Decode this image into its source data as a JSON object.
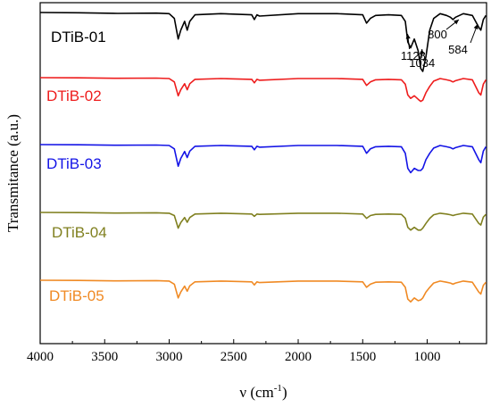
{
  "chart_data": {
    "type": "line",
    "xlabel": "ν (cm",
    "xlabel_sup": "-1",
    "xlabel_close": ")",
    "ylabel": "Transmitance (a.u.)",
    "xlim": [
      4000,
      540
    ],
    "x_reversed": true,
    "x_ticks": [
      4000,
      3500,
      3000,
      2500,
      2000,
      1500,
      1000
    ],
    "y_ticks_shown": false,
    "legend_placement": "inline-left",
    "series": [
      {
        "name": "DTiB-01",
        "color": "#000000",
        "label_color": "#000000",
        "baseline": 1.0,
        "scale": 1.0,
        "points": [
          [
            4000,
            0.0
          ],
          [
            3700,
            0.005
          ],
          [
            3400,
            0.015
          ],
          [
            3100,
            0.01
          ],
          [
            3000,
            0.02
          ],
          [
            2960,
            0.1
          ],
          [
            2930,
            0.45
          ],
          [
            2910,
            0.3
          ],
          [
            2880,
            0.15
          ],
          [
            2860,
            0.3
          ],
          [
            2840,
            0.15
          ],
          [
            2800,
            0.04
          ],
          [
            2600,
            0.02
          ],
          [
            2360,
            0.04
          ],
          [
            2340,
            0.12
          ],
          [
            2320,
            0.04
          ],
          [
            2300,
            0.06
          ],
          [
            2000,
            0.02
          ],
          [
            1700,
            0.02
          ],
          [
            1500,
            0.04
          ],
          [
            1470,
            0.18
          ],
          [
            1440,
            0.1
          ],
          [
            1400,
            0.05
          ],
          [
            1300,
            0.04
          ],
          [
            1200,
            0.05
          ],
          [
            1170,
            0.15
          ],
          [
            1150,
            0.5
          ],
          [
            1128,
            0.6
          ],
          [
            1100,
            0.45
          ],
          [
            1070,
            0.65
          ],
          [
            1050,
            0.95
          ],
          [
            1034,
            1.0
          ],
          [
            1010,
            0.75
          ],
          [
            980,
            0.3
          ],
          [
            950,
            0.1
          ],
          [
            900,
            0.02
          ],
          [
            850,
            0.05
          ],
          [
            820,
            0.08
          ],
          [
            800,
            0.12
          ],
          [
            780,
            0.08
          ],
          [
            720,
            0.02
          ],
          [
            650,
            0.05
          ],
          [
            600,
            0.25
          ],
          [
            584,
            0.3
          ],
          [
            565,
            0.12
          ],
          [
            545,
            0.05
          ]
        ]
      },
      {
        "name": "DTiB-02",
        "color": "#ee1c1c",
        "label_color": "#ee1c1c",
        "baseline": 2.0,
        "scale": 1.0,
        "points": [
          [
            4000,
            0.0
          ],
          [
            3700,
            0.005
          ],
          [
            3400,
            0.015
          ],
          [
            3100,
            0.01
          ],
          [
            3000,
            0.02
          ],
          [
            2960,
            0.1
          ],
          [
            2930,
            0.42
          ],
          [
            2910,
            0.28
          ],
          [
            2880,
            0.14
          ],
          [
            2860,
            0.28
          ],
          [
            2840,
            0.14
          ],
          [
            2800,
            0.04
          ],
          [
            2600,
            0.02
          ],
          [
            2360,
            0.04
          ],
          [
            2340,
            0.12
          ],
          [
            2320,
            0.04
          ],
          [
            2300,
            0.06
          ],
          [
            2000,
            0.02
          ],
          [
            1700,
            0.02
          ],
          [
            1500,
            0.04
          ],
          [
            1470,
            0.18
          ],
          [
            1440,
            0.1
          ],
          [
            1400,
            0.05
          ],
          [
            1300,
            0.04
          ],
          [
            1200,
            0.05
          ],
          [
            1170,
            0.15
          ],
          [
            1150,
            0.4
          ],
          [
            1128,
            0.48
          ],
          [
            1100,
            0.42
          ],
          [
            1070,
            0.5
          ],
          [
            1050,
            0.55
          ],
          [
            1034,
            0.52
          ],
          [
            1010,
            0.35
          ],
          [
            980,
            0.2
          ],
          [
            950,
            0.08
          ],
          [
            900,
            0.02
          ],
          [
            850,
            0.05
          ],
          [
            820,
            0.07
          ],
          [
            800,
            0.1
          ],
          [
            780,
            0.07
          ],
          [
            720,
            0.02
          ],
          [
            650,
            0.05
          ],
          [
            600,
            0.35
          ],
          [
            584,
            0.4
          ],
          [
            565,
            0.15
          ],
          [
            545,
            0.05
          ]
        ]
      },
      {
        "name": "DTiB-03",
        "color": "#1414e6",
        "label_color": "#1414e6",
        "baseline": 3.0,
        "scale": 1.0,
        "points": [
          [
            4000,
            0.0
          ],
          [
            3700,
            0.005
          ],
          [
            3400,
            0.015
          ],
          [
            3100,
            0.01
          ],
          [
            3000,
            0.02
          ],
          [
            2960,
            0.1
          ],
          [
            2930,
            0.5
          ],
          [
            2910,
            0.32
          ],
          [
            2880,
            0.16
          ],
          [
            2860,
            0.3
          ],
          [
            2840,
            0.15
          ],
          [
            2800,
            0.04
          ],
          [
            2600,
            0.02
          ],
          [
            2360,
            0.04
          ],
          [
            2340,
            0.12
          ],
          [
            2320,
            0.04
          ],
          [
            2300,
            0.06
          ],
          [
            2000,
            0.02
          ],
          [
            1700,
            0.02
          ],
          [
            1500,
            0.04
          ],
          [
            1470,
            0.2
          ],
          [
            1440,
            0.1
          ],
          [
            1400,
            0.05
          ],
          [
            1300,
            0.04
          ],
          [
            1200,
            0.05
          ],
          [
            1170,
            0.2
          ],
          [
            1150,
            0.55
          ],
          [
            1128,
            0.65
          ],
          [
            1100,
            0.55
          ],
          [
            1070,
            0.6
          ],
          [
            1050,
            0.6
          ],
          [
            1034,
            0.55
          ],
          [
            1010,
            0.35
          ],
          [
            980,
            0.2
          ],
          [
            950,
            0.08
          ],
          [
            900,
            0.02
          ],
          [
            850,
            0.05
          ],
          [
            820,
            0.07
          ],
          [
            800,
            0.1
          ],
          [
            780,
            0.07
          ],
          [
            720,
            0.02
          ],
          [
            650,
            0.05
          ],
          [
            600,
            0.35
          ],
          [
            584,
            0.42
          ],
          [
            565,
            0.15
          ],
          [
            545,
            0.05
          ]
        ]
      },
      {
        "name": "DTiB-04",
        "color": "#808020",
        "label_color": "#808020",
        "baseline": 4.0,
        "scale": 1.0,
        "points": [
          [
            4000,
            0.0
          ],
          [
            3700,
            0.005
          ],
          [
            3400,
            0.015
          ],
          [
            3100,
            0.01
          ],
          [
            3000,
            0.02
          ],
          [
            2960,
            0.08
          ],
          [
            2930,
            0.4
          ],
          [
            2910,
            0.26
          ],
          [
            2880,
            0.13
          ],
          [
            2860,
            0.25
          ],
          [
            2840,
            0.13
          ],
          [
            2800,
            0.04
          ],
          [
            2600,
            0.02
          ],
          [
            2360,
            0.04
          ],
          [
            2340,
            0.1
          ],
          [
            2320,
            0.04
          ],
          [
            2300,
            0.05
          ],
          [
            2000,
            0.02
          ],
          [
            1700,
            0.02
          ],
          [
            1500,
            0.04
          ],
          [
            1470,
            0.15
          ],
          [
            1440,
            0.08
          ],
          [
            1400,
            0.05
          ],
          [
            1300,
            0.04
          ],
          [
            1200,
            0.05
          ],
          [
            1170,
            0.15
          ],
          [
            1150,
            0.38
          ],
          [
            1128,
            0.45
          ],
          [
            1100,
            0.38
          ],
          [
            1070,
            0.45
          ],
          [
            1050,
            0.45
          ],
          [
            1034,
            0.4
          ],
          [
            1010,
            0.28
          ],
          [
            980,
            0.15
          ],
          [
            950,
            0.06
          ],
          [
            900,
            0.02
          ],
          [
            850,
            0.04
          ],
          [
            820,
            0.06
          ],
          [
            800,
            0.08
          ],
          [
            780,
            0.06
          ],
          [
            720,
            0.02
          ],
          [
            650,
            0.04
          ],
          [
            600,
            0.28
          ],
          [
            584,
            0.32
          ],
          [
            565,
            0.12
          ],
          [
            545,
            0.05
          ]
        ]
      },
      {
        "name": "DTiB-05",
        "color": "#f08a24",
        "label_color": "#f08a24",
        "baseline": 5.0,
        "scale": 1.0,
        "points": [
          [
            4000,
            0.0
          ],
          [
            3700,
            0.005
          ],
          [
            3400,
            0.015
          ],
          [
            3100,
            0.01
          ],
          [
            3000,
            0.02
          ],
          [
            2960,
            0.1
          ],
          [
            2930,
            0.45
          ],
          [
            2910,
            0.3
          ],
          [
            2880,
            0.15
          ],
          [
            2860,
            0.28
          ],
          [
            2840,
            0.14
          ],
          [
            2800,
            0.04
          ],
          [
            2600,
            0.02
          ],
          [
            2360,
            0.04
          ],
          [
            2340,
            0.12
          ],
          [
            2320,
            0.04
          ],
          [
            2300,
            0.06
          ],
          [
            2000,
            0.02
          ],
          [
            1700,
            0.02
          ],
          [
            1500,
            0.04
          ],
          [
            1470,
            0.18
          ],
          [
            1440,
            0.1
          ],
          [
            1400,
            0.05
          ],
          [
            1300,
            0.04
          ],
          [
            1200,
            0.05
          ],
          [
            1170,
            0.18
          ],
          [
            1150,
            0.48
          ],
          [
            1128,
            0.55
          ],
          [
            1100,
            0.45
          ],
          [
            1070,
            0.52
          ],
          [
            1050,
            0.5
          ],
          [
            1034,
            0.45
          ],
          [
            1010,
            0.3
          ],
          [
            980,
            0.18
          ],
          [
            950,
            0.07
          ],
          [
            900,
            0.02
          ],
          [
            850,
            0.05
          ],
          [
            820,
            0.07
          ],
          [
            800,
            0.1
          ],
          [
            780,
            0.07
          ],
          [
            720,
            0.02
          ],
          [
            650,
            0.05
          ],
          [
            600,
            0.3
          ],
          [
            584,
            0.35
          ],
          [
            565,
            0.13
          ],
          [
            545,
            0.05
          ]
        ]
      }
    ],
    "annotations": [
      {
        "text": "1128",
        "x": 1128,
        "series": 0
      },
      {
        "text": "1034",
        "x": 1034,
        "series": 0
      },
      {
        "text": "800",
        "x": 800,
        "series": 0
      },
      {
        "text": "584",
        "x": 584,
        "series": 0
      }
    ]
  }
}
